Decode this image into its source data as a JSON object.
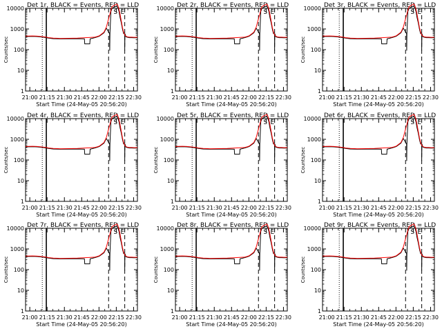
{
  "chart_data": {
    "type": "line",
    "layout": {
      "rows": 3,
      "cols": 3
    },
    "shared": {
      "title_suffix": "BLACK = Events, RED = LLD",
      "xlabel": "Start Time (24-May-05 20:56:20)",
      "ylabel": "Counts/sec",
      "xticks": [
        "21:00",
        "21:15",
        "21:30",
        "21:45",
        "22:00",
        "22:15",
        "22:30"
      ],
      "yticks": [
        "1",
        "10",
        "100",
        "1000",
        "10000"
      ],
      "ylim": [
        1,
        10000
      ],
      "yscale": "log",
      "xlim_minutes_after_start": [
        0,
        97
      ],
      "grid": false,
      "series": [
        {
          "name": "Events",
          "color": "#000000"
        },
        {
          "name": "LLD",
          "color": "#ff0000"
        }
      ]
    },
    "panels": [
      {
        "title_prefix": "Det 1r"
      },
      {
        "title_prefix": "Det 2r"
      },
      {
        "title_prefix": "Det 3r"
      },
      {
        "title_prefix": "Det 4r"
      },
      {
        "title_prefix": "Det 5r"
      },
      {
        "title_prefix": "Det 6r"
      },
      {
        "title_prefix": "Det 7r"
      },
      {
        "title_prefix": "Det 8r"
      },
      {
        "title_prefix": "Det 9r"
      }
    ],
    "curve_profile": {
      "x": [
        0,
        6,
        10,
        15,
        18,
        20,
        24,
        28,
        30,
        45,
        60,
        62,
        64,
        68,
        70,
        74,
        75,
        79,
        80,
        81,
        82,
        83,
        84,
        85,
        86,
        87,
        88,
        89,
        90,
        92,
        94,
        96,
        97
      ],
      "lld": [
        450,
        460,
        450,
        420,
        400,
        380,
        360,
        355,
        350,
        360,
        400,
        430,
        470,
        700,
        1200,
        8000,
        12000,
        16000,
        14000,
        9000,
        5000,
        2500,
        1200,
        700,
        520,
        450,
        420,
        410,
        400,
        400,
        395,
        395,
        395
      ],
      "events": [
        430,
        440,
        430,
        400,
        380,
        360,
        340,
        335,
        330,
        340,
        380,
        410,
        450,
        650,
        1100,
        7000,
        10000,
        13000,
        11000,
        7000,
        3500,
        2000,
        1000,
        600,
        500,
        420,
        400,
        390,
        380,
        380,
        375,
        375,
        375
      ],
      "events_dip": {
        "x_range": [
          51,
          56
        ],
        "value": 190
      },
      "events_drops": [
        {
          "x": 73,
          "value": 90
        },
        {
          "x": 86,
          "value": 90
        }
      ]
    },
    "vertical_markers": [
      {
        "x": 14.5,
        "style": "dotted"
      },
      {
        "x": 18,
        "style": "solid"
      },
      {
        "x": 72,
        "style": "dashed"
      },
      {
        "x": 86,
        "style": "dashed"
      }
    ],
    "annotations": [
      "S",
      "E"
    ]
  }
}
